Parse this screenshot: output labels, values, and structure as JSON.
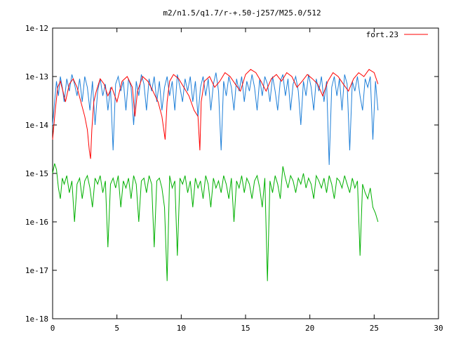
{
  "chart_data": {
    "type": "line",
    "title": "m2/n1.5/q1.7/r-+.50-j257/M25.0/512",
    "xlabel": "",
    "ylabel": "",
    "xlim": [
      0,
      30
    ],
    "ylim": [
      1e-18,
      1e-12
    ],
    "yscale": "log",
    "grid": false,
    "legend_position": "top-right",
    "x_ticks": [
      0,
      5,
      10,
      15,
      20,
      25,
      30
    ],
    "x_tick_labels": [
      "0",
      "5",
      "10",
      "15",
      "20",
      "25",
      "30"
    ],
    "y_ticks": [
      1e-18,
      1e-17,
      1e-16,
      1e-15,
      1e-14,
      1e-13,
      1e-12
    ],
    "y_tick_labels": [
      "1e-18",
      "1e-17",
      "1e-16",
      "1e-15",
      "1e-14",
      "1e-13",
      "1e-12"
    ],
    "series": [
      {
        "name": "fort.23",
        "color": "#ff0000",
        "x": [
          0.0,
          0.2,
          0.4,
          0.6,
          0.8,
          1.0,
          1.3,
          1.6,
          1.9,
          2.2,
          2.5,
          2.7,
          2.85,
          2.95,
          3.05,
          3.2,
          3.4,
          3.7,
          4.0,
          4.3,
          4.6,
          5.0,
          5.4,
          5.8,
          6.2,
          6.4,
          6.6,
          7.0,
          7.4,
          7.8,
          8.2,
          8.5,
          8.75,
          8.9,
          9.1,
          9.4,
          9.8,
          10.2,
          10.6,
          11.0,
          11.3,
          11.45,
          11.55,
          11.8,
          12.2,
          12.6,
          13.0,
          13.4,
          13.8,
          14.2,
          14.6,
          15.0,
          15.4,
          15.8,
          16.2,
          16.6,
          17.0,
          17.4,
          17.8,
          18.2,
          18.6,
          19.0,
          19.4,
          19.8,
          20.2,
          20.6,
          21.0,
          21.4,
          21.8,
          22.2,
          22.6,
          23.0,
          23.4,
          23.8,
          24.2,
          24.6,
          25.0,
          25.3
        ],
        "y": [
          5e-15,
          2e-14,
          6e-14,
          8e-14,
          5e-14,
          3e-14,
          7e-14,
          9e-14,
          6e-14,
          3e-14,
          1.5e-14,
          8e-15,
          3e-15,
          2e-15,
          8e-15,
          3e-14,
          5e-14,
          9e-14,
          7e-14,
          4e-14,
          6e-14,
          3e-14,
          8e-14,
          1e-13,
          6e-14,
          1.5e-14,
          5e-14,
          1e-13,
          8e-14,
          5e-14,
          3e-14,
          1.5e-14,
          5e-15,
          3e-14,
          8e-14,
          1.1e-13,
          9e-14,
          6e-14,
          4e-14,
          2e-14,
          1.5e-14,
          3e-15,
          3e-14,
          8e-14,
          1e-13,
          6e-14,
          8e-14,
          1.2e-13,
          1e-13,
          7e-14,
          5e-14,
          1.1e-13,
          1.4e-13,
          1.2e-13,
          8e-14,
          5e-14,
          9e-14,
          1.1e-13,
          8e-14,
          1.2e-13,
          1e-13,
          6e-14,
          8e-14,
          1.1e-13,
          9e-14,
          7e-14,
          4e-14,
          8e-14,
          1.2e-13,
          1e-13,
          7e-14,
          5e-14,
          9e-14,
          1.2e-13,
          1e-13,
          1.4e-13,
          1.2e-13,
          7e-14
        ]
      },
      {
        "name": "",
        "color": "#1e7fd8",
        "x": [
          0.0,
          0.15,
          0.3,
          0.45,
          0.6,
          0.75,
          0.9,
          1.1,
          1.3,
          1.5,
          1.7,
          1.9,
          2.1,
          2.3,
          2.5,
          2.7,
          2.9,
          3.1,
          3.3,
          3.5,
          3.7,
          3.9,
          4.1,
          4.3,
          4.5,
          4.7,
          4.9,
          5.1,
          5.3,
          5.5,
          5.7,
          5.9,
          6.1,
          6.3,
          6.5,
          6.7,
          6.9,
          7.1,
          7.3,
          7.5,
          7.7,
          7.9,
          8.1,
          8.3,
          8.5,
          8.7,
          8.9,
          9.1,
          9.3,
          9.5,
          9.7,
          9.9,
          10.1,
          10.3,
          10.5,
          10.7,
          10.9,
          11.1,
          11.3,
          11.5,
          11.7,
          11.9,
          12.1,
          12.3,
          12.5,
          12.7,
          12.9,
          13.1,
          13.3,
          13.5,
          13.7,
          13.9,
          14.1,
          14.3,
          14.5,
          14.7,
          14.9,
          15.1,
          15.3,
          15.5,
          15.7,
          15.9,
          16.1,
          16.3,
          16.5,
          16.7,
          16.9,
          17.1,
          17.3,
          17.5,
          17.7,
          17.9,
          18.1,
          18.3,
          18.5,
          18.7,
          18.9,
          19.1,
          19.3,
          19.5,
          19.7,
          19.9,
          20.1,
          20.3,
          20.5,
          20.7,
          20.9,
          21.1,
          21.3,
          21.5,
          21.7,
          21.9,
          22.1,
          22.3,
          22.5,
          22.7,
          22.9,
          23.1,
          23.3,
          23.5,
          23.7,
          23.9,
          24.1,
          24.3,
          24.5,
          24.7,
          24.9,
          25.1,
          25.3
        ],
        "y": [
          1e-14,
          3e-14,
          8e-14,
          4e-14,
          1e-13,
          6e-14,
          3e-14,
          9e-14,
          5e-14,
          1.1e-13,
          7e-14,
          4e-14,
          9e-14,
          3e-14,
          1e-13,
          6e-14,
          2e-14,
          8e-14,
          1e-14,
          5e-14,
          9e-14,
          4e-14,
          7e-14,
          2e-14,
          6e-14,
          3e-15,
          7e-14,
          1e-13,
          5e-14,
          8e-14,
          2e-14,
          9e-14,
          6e-14,
          1e-14,
          8e-14,
          4e-14,
          1.1e-13,
          7e-14,
          2e-14,
          9e-14,
          5e-14,
          1e-13,
          3e-14,
          8e-14,
          2e-14,
          6e-14,
          1e-13,
          4e-14,
          8e-14,
          2e-14,
          1.1e-13,
          6e-14,
          3e-14,
          9e-14,
          5e-14,
          1e-13,
          3e-14,
          8e-14,
          1.5e-14,
          6e-14,
          1e-13,
          4e-14,
          9e-14,
          2e-14,
          7e-14,
          1.2e-13,
          5e-14,
          3e-15,
          8e-14,
          4e-14,
          1e-13,
          6e-14,
          2e-14,
          9e-14,
          5e-14,
          1e-13,
          3e-14,
          8e-14,
          5e-14,
          1.1e-13,
          6e-14,
          2e-14,
          9e-14,
          4e-14,
          1e-13,
          7e-14,
          3e-14,
          1e-13,
          5e-14,
          2e-14,
          8e-14,
          1.1e-13,
          4e-14,
          9e-14,
          2e-14,
          7e-14,
          1e-13,
          5e-14,
          1e-14,
          8e-14,
          4e-14,
          1.1e-13,
          6e-14,
          2e-14,
          9e-14,
          5e-14,
          1e-13,
          3e-14,
          8e-14,
          1.5e-15,
          6e-14,
          1e-13,
          4e-14,
          9e-14,
          2e-14,
          1.1e-13,
          7e-14,
          3e-15,
          8e-14,
          5e-14,
          1e-13,
          4e-14,
          2e-14,
          9e-14,
          6e-14,
          1e-13,
          5e-15,
          8e-14,
          2e-14
        ]
      },
      {
        "name": "",
        "color": "#00b000",
        "x": [
          0.0,
          0.15,
          0.3,
          0.45,
          0.6,
          0.75,
          0.9,
          1.1,
          1.3,
          1.5,
          1.7,
          1.9,
          2.1,
          2.3,
          2.5,
          2.7,
          2.9,
          3.1,
          3.3,
          3.5,
          3.7,
          3.9,
          4.1,
          4.3,
          4.5,
          4.7,
          4.9,
          5.1,
          5.3,
          5.5,
          5.7,
          5.9,
          6.1,
          6.3,
          6.5,
          6.7,
          6.9,
          7.1,
          7.3,
          7.5,
          7.7,
          7.9,
          8.1,
          8.3,
          8.5,
          8.7,
          8.9,
          9.1,
          9.3,
          9.5,
          9.7,
          9.9,
          10.1,
          10.3,
          10.5,
          10.7,
          10.9,
          11.1,
          11.3,
          11.5,
          11.7,
          11.9,
          12.1,
          12.3,
          12.5,
          12.7,
          12.9,
          13.1,
          13.3,
          13.5,
          13.7,
          13.9,
          14.1,
          14.3,
          14.5,
          14.7,
          14.9,
          15.1,
          15.3,
          15.5,
          15.7,
          15.9,
          16.1,
          16.3,
          16.5,
          16.7,
          16.9,
          17.1,
          17.3,
          17.5,
          17.7,
          17.9,
          18.1,
          18.3,
          18.5,
          18.7,
          18.9,
          19.1,
          19.3,
          19.5,
          19.7,
          19.9,
          20.1,
          20.3,
          20.5,
          20.7,
          20.9,
          21.1,
          21.3,
          21.5,
          21.7,
          21.9,
          22.1,
          22.3,
          22.5,
          22.7,
          22.9,
          23.1,
          23.3,
          23.5,
          23.7,
          23.9,
          24.1,
          24.3,
          24.5,
          24.7,
          24.9,
          25.1,
          25.3
        ],
        "y": [
          1e-15,
          1.6e-15,
          1.2e-15,
          5e-16,
          3e-16,
          8e-16,
          6e-16,
          9e-16,
          4e-16,
          7e-16,
          1e-16,
          6e-16,
          8e-16,
          3e-16,
          7e-16,
          9e-16,
          5e-16,
          2e-16,
          8e-16,
          6e-16,
          9e-16,
          4e-16,
          7e-16,
          3e-17,
          6e-16,
          8e-16,
          5e-16,
          9e-16,
          2e-16,
          7e-16,
          5e-16,
          8e-16,
          3e-16,
          9e-16,
          6e-16,
          1e-16,
          7e-16,
          8e-16,
          4e-16,
          9e-16,
          6e-16,
          3e-17,
          7e-16,
          8e-16,
          5e-16,
          2e-16,
          6e-18,
          9e-16,
          5e-16,
          7e-16,
          2e-17,
          8e-16,
          6e-16,
          9e-16,
          4e-16,
          7e-16,
          2e-16,
          8e-16,
          5e-16,
          7e-16,
          3e-16,
          9e-16,
          6e-16,
          2e-16,
          8e-16,
          5e-16,
          7e-16,
          4e-16,
          9e-16,
          6e-16,
          3e-16,
          8e-16,
          1e-16,
          7e-16,
          5e-16,
          9e-16,
          4e-16,
          8e-16,
          6e-16,
          3e-16,
          7e-16,
          9e-16,
          5e-16,
          2e-16,
          8e-16,
          6e-18,
          7e-16,
          4e-16,
          9e-16,
          6e-16,
          3e-16,
          1.4e-15,
          8e-16,
          5e-16,
          9e-16,
          7e-16,
          4e-16,
          8e-16,
          6e-16,
          1e-15,
          5e-16,
          8e-16,
          6e-16,
          3e-16,
          9e-16,
          7e-16,
          5e-16,
          8e-16,
          4e-16,
          9e-16,
          6e-16,
          3e-16,
          8e-16,
          7e-16,
          5e-16,
          9e-16,
          6e-16,
          4e-16,
          8e-16,
          5e-16,
          7e-16,
          2e-17,
          6e-16,
          4e-16,
          3e-16,
          5e-16,
          2e-16,
          1.5e-16,
          1e-16
        ]
      }
    ]
  }
}
